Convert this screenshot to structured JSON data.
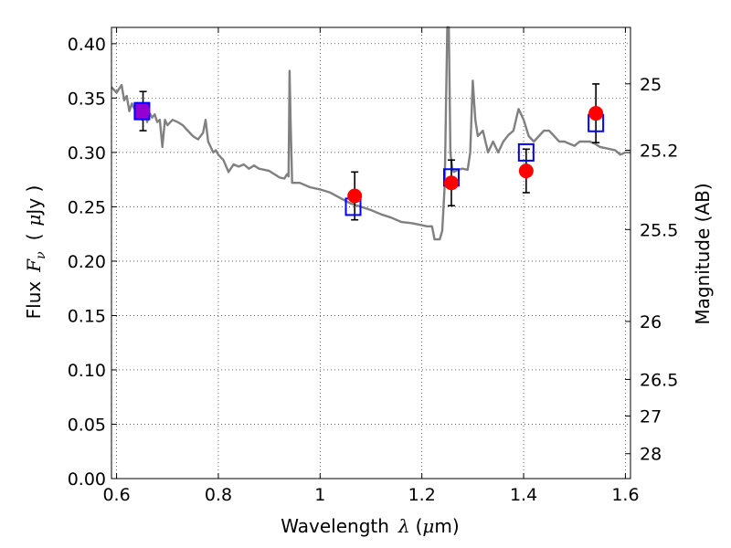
{
  "chart_data": {
    "type": "scatter",
    "title": "",
    "xlabel": "Wavelength",
    "xlabel_symbol": "λ",
    "xlabel_unit_open": "(",
    "xlabel_unit_mu": "μ",
    "xlabel_unit_rest": "m)",
    "ylabel": "Flux",
    "ylabel_symbol": "F",
    "ylabel_subscript": "ν",
    "ylabel_unit_open": "(",
    "ylabel_unit_mu": "μ",
    "ylabel_unit_rest": "Jy )",
    "y2label": "Magnitude (AB)",
    "xlim": [
      0.59,
      1.61
    ],
    "ylim": [
      0.0,
      0.415
    ],
    "x_ticks": [
      0.6,
      0.8,
      1.0,
      1.2,
      1.4,
      1.6
    ],
    "x_tick_labels": [
      "0.6",
      "0.8",
      "1",
      "1.2",
      "1.4",
      "1.6"
    ],
    "y_ticks": [
      0.0,
      0.05,
      0.1,
      0.15,
      0.2,
      0.25,
      0.3,
      0.35,
      0.4
    ],
    "y_tick_labels": [
      "0.00",
      "0.05",
      "0.10",
      "0.15",
      "0.20",
      "0.25",
      "0.30",
      "0.35",
      "0.40"
    ],
    "y2_ticks": [
      25,
      25.2,
      25.5,
      26,
      26.5,
      27,
      28
    ],
    "y2_tick_labels": [
      "25",
      "25.2",
      "25.5",
      "26",
      "26.5",
      "27",
      "28"
    ],
    "grid": true,
    "colors": {
      "spectrum": "#808080",
      "observed": "#ff0000",
      "model": "#0000ff",
      "overlap": "#9400d3",
      "errorbar": "#000000"
    },
    "series": [
      {
        "type": "line",
        "x": [
          0.59,
          0.6,
          0.61,
          0.615,
          0.62,
          0.625,
          0.63,
          0.635,
          0.64,
          0.645,
          0.65,
          0.655,
          0.66,
          0.665,
          0.67,
          0.675,
          0.68,
          0.685,
          0.69,
          0.695,
          0.7,
          0.71,
          0.72,
          0.73,
          0.74,
          0.75,
          0.76,
          0.77,
          0.775,
          0.78,
          0.785,
          0.79,
          0.795,
          0.8,
          0.81,
          0.82,
          0.83,
          0.84,
          0.85,
          0.86,
          0.87,
          0.88,
          0.9,
          0.92,
          0.93,
          0.935,
          0.938,
          0.94,
          0.942,
          0.945,
          0.96,
          0.98,
          1.0,
          1.02,
          1.04,
          1.06,
          1.08,
          1.1,
          1.12,
          1.14,
          1.16,
          1.18,
          1.2,
          1.21,
          1.22,
          1.225,
          1.235,
          1.24,
          1.245,
          1.25,
          1.253,
          1.256,
          1.26,
          1.263,
          1.267,
          1.27,
          1.28,
          1.29,
          1.295,
          1.3,
          1.305,
          1.31,
          1.32,
          1.33,
          1.34,
          1.35,
          1.36,
          1.37,
          1.38,
          1.39,
          1.4,
          1.41,
          1.42,
          1.43,
          1.44,
          1.45,
          1.46,
          1.47,
          1.48,
          1.49,
          1.5,
          1.51,
          1.52,
          1.53,
          1.54,
          1.55,
          1.56,
          1.57,
          1.58,
          1.59,
          1.6,
          1.61
        ],
        "y": [
          0.36,
          0.355,
          0.362,
          0.348,
          0.352,
          0.338,
          0.345,
          0.34,
          0.336,
          0.342,
          0.33,
          0.34,
          0.328,
          0.336,
          0.332,
          0.335,
          0.328,
          0.33,
          0.305,
          0.33,
          0.325,
          0.33,
          0.328,
          0.325,
          0.32,
          0.315,
          0.312,
          0.318,
          0.33,
          0.31,
          0.305,
          0.3,
          0.302,
          0.298,
          0.293,
          0.282,
          0.289,
          0.287,
          0.289,
          0.285,
          0.288,
          0.285,
          0.283,
          0.277,
          0.276,
          0.28,
          0.278,
          0.375,
          0.33,
          0.272,
          0.272,
          0.268,
          0.266,
          0.263,
          0.258,
          0.253,
          0.25,
          0.247,
          0.243,
          0.24,
          0.236,
          0.235,
          0.233,
          0.232,
          0.232,
          0.22,
          0.22,
          0.228,
          0.27,
          0.42,
          0.42,
          0.3,
          0.284,
          0.282,
          0.283,
          0.284,
          0.285,
          0.284,
          0.3,
          0.366,
          0.33,
          0.315,
          0.32,
          0.3,
          0.31,
          0.3,
          0.31,
          0.316,
          0.32,
          0.34,
          0.33,
          0.315,
          0.31,
          0.315,
          0.32,
          0.32,
          0.315,
          0.31,
          0.31,
          0.308,
          0.306,
          0.31,
          0.31,
          0.31,
          0.308,
          0.305,
          0.304,
          0.303,
          0.302,
          0.298,
          0.3,
          0.3
        ]
      },
      {
        "type": "model-squares",
        "x": [
          0.65,
          1.065,
          1.258,
          1.405,
          1.542
        ],
        "y": [
          0.338,
          0.25,
          0.277,
          0.3,
          0.327
        ]
      },
      {
        "type": "observed-points",
        "x": [
          0.652,
          1.068,
          1.258,
          1.405,
          1.542
        ],
        "y": [
          0.338,
          0.26,
          0.272,
          0.283,
          0.336
        ],
        "yerr": [
          0.018,
          0.022,
          0.021,
          0.02,
          0.027
        ]
      }
    ]
  }
}
